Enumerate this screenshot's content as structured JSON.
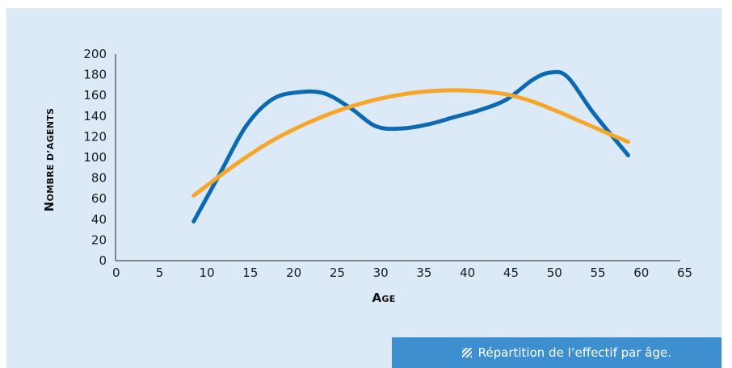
{
  "caption": {
    "text": "Répartition de l’effectif par âge.",
    "icon": "hatched-square-icon"
  },
  "chart_data": {
    "type": "line",
    "title": "",
    "xlabel": "Age",
    "ylabel": "Nombre d’agents",
    "xlim": [
      0,
      65
    ],
    "ylim": [
      0,
      200
    ],
    "x_ticks": [
      0,
      5,
      10,
      15,
      20,
      25,
      30,
      35,
      40,
      45,
      50,
      55,
      60,
      65
    ],
    "y_ticks": [
      0,
      20,
      40,
      60,
      80,
      100,
      120,
      140,
      160,
      180,
      200
    ],
    "grid": false,
    "legend": "none",
    "series": [
      {
        "color": "#0b6ab3",
        "smooth": true,
        "x": [
          9,
          12,
          15,
          18,
          21,
          24,
          27,
          30,
          33,
          36,
          39,
          42,
          45,
          48,
          50,
          52,
          55,
          59
        ],
        "y": [
          38,
          84,
          130,
          156,
          163,
          162,
          148,
          130,
          128,
          132,
          139,
          146,
          156,
          175,
          182,
          178,
          143,
          102
        ]
      },
      {
        "color": "#f6a72a",
        "smooth": true,
        "x": [
          9,
          12,
          15,
          18,
          21,
          24,
          27,
          30,
          33,
          36,
          39,
          42,
          45,
          48,
          51,
          54,
          57,
          59
        ],
        "y": [
          63,
          82,
          100,
          116,
          129,
          140,
          149,
          156,
          161,
          164,
          165,
          164,
          161,
          154,
          144,
          133,
          122,
          115
        ]
      }
    ]
  }
}
